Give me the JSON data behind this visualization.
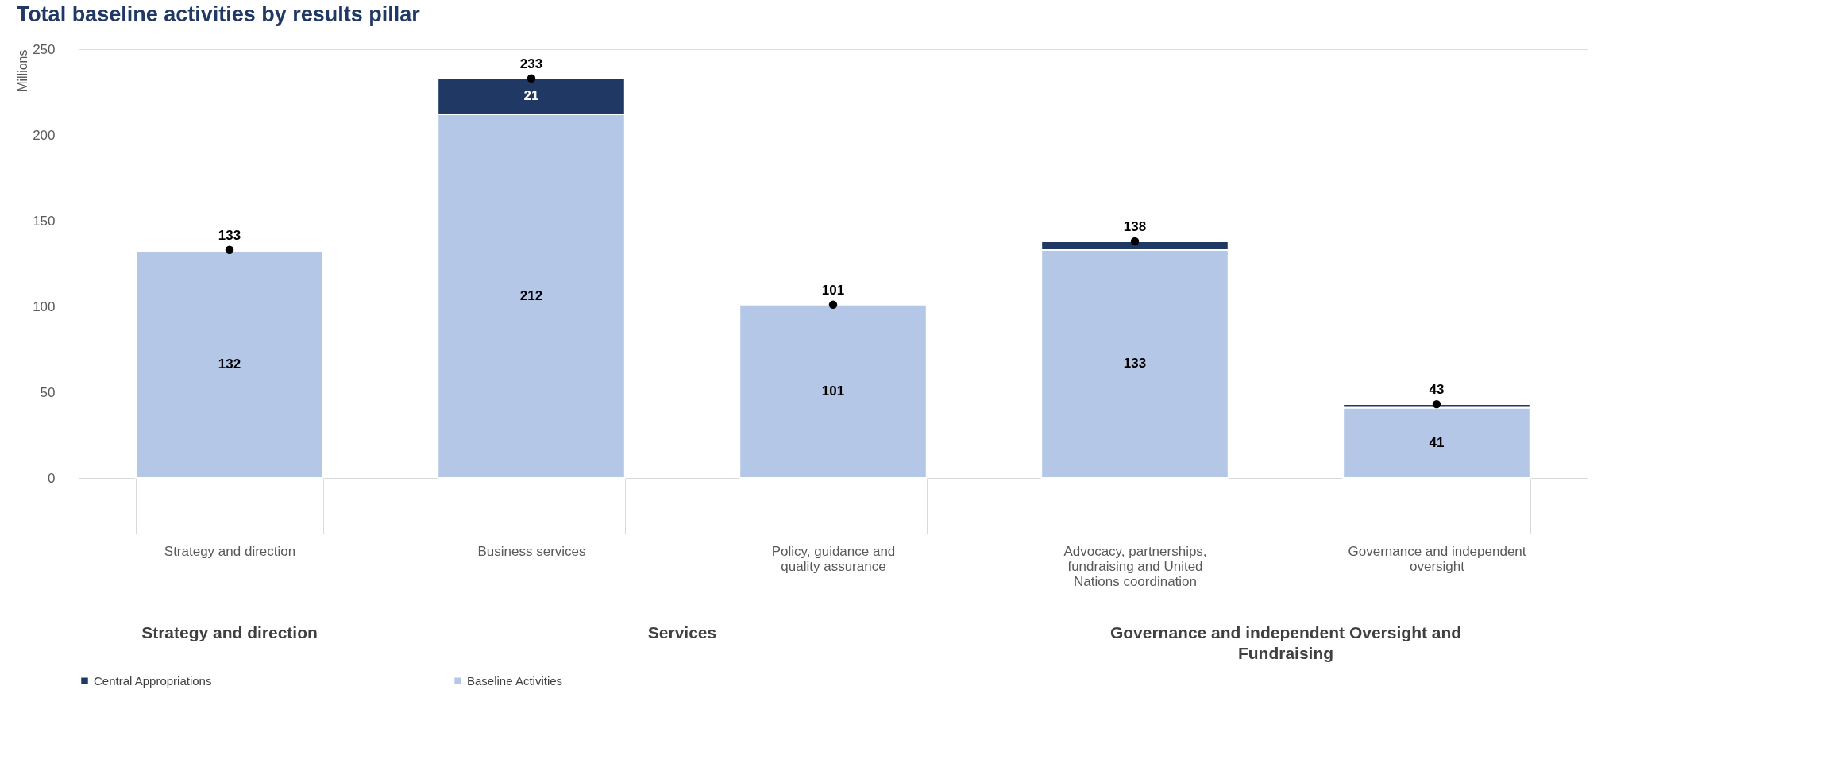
{
  "chart_data": {
    "type": "bar",
    "title": "Total baseline activities by results pillar",
    "ylabel": "Millions",
    "categories": [
      "Strategy and direction",
      "Business services",
      "Policy, guidance and quality assurance",
      "Advocacy, partnerships, fundraising and United Nations coordination",
      "Governance and independent oversight"
    ],
    "stacked": true,
    "series": [
      {
        "name": "Baseline Activities",
        "color": "#b4c7e7",
        "values": [
          132,
          212,
          101,
          133,
          41
        ]
      },
      {
        "name": "Central Appropriations",
        "color": "#1f3864",
        "values": [
          null,
          21,
          null,
          5,
          2
        ],
        "value_labels": [
          null,
          "21",
          null,
          null,
          null
        ]
      },
      {
        "type": "scatter",
        "color": "#000000",
        "values": [
          133,
          233,
          101,
          138,
          43
        ]
      }
    ],
    "annotations": [
      "Strategy and direction",
      "Services",
      "Governance and independent Oversight and Fundraising"
    ],
    "data_labels": true,
    "marker": "circle",
    "ylim": [
      0,
      250
    ],
    "yticks": [
      0,
      50,
      100,
      150,
      200,
      250
    ],
    "grid": false,
    "legend": "bottom"
  }
}
